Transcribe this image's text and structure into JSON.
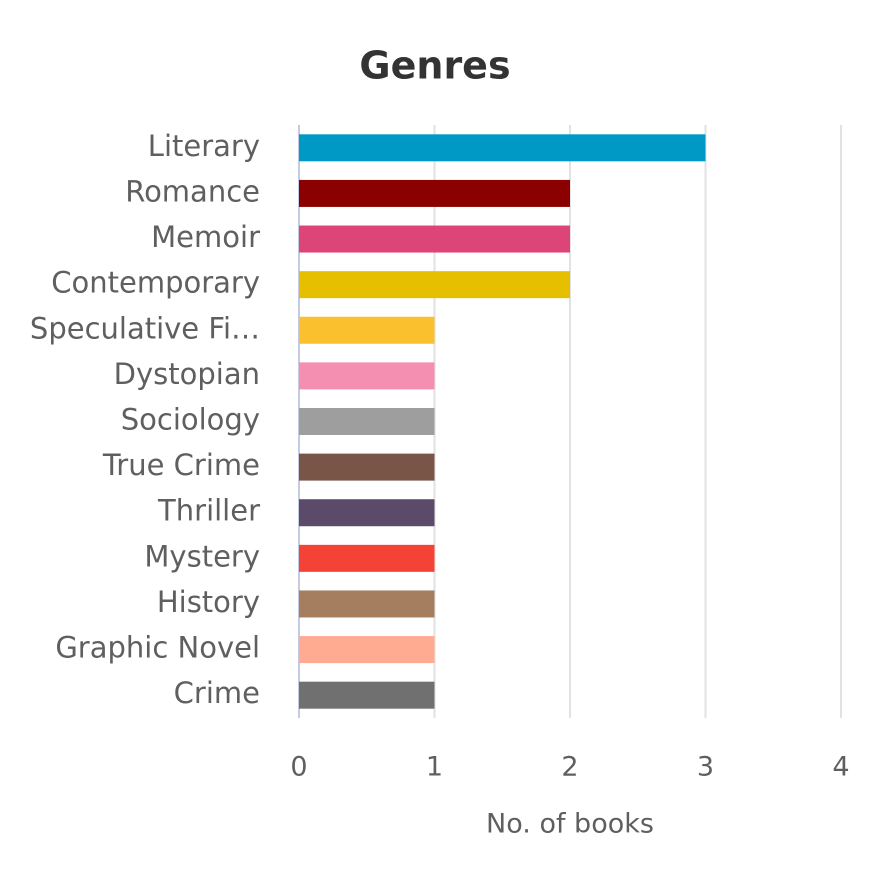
{
  "chart_data": {
    "type": "barh",
    "title": "Genres",
    "x_label": "No. of books",
    "categories": [
      "Literary",
      "Romance",
      "Memoir",
      "Contemporary",
      "Speculative Fi…",
      "Dystopian",
      "Sociology",
      "True Crime",
      "Thriller",
      "Mystery",
      "History",
      "Graphic Novel",
      "Crime"
    ],
    "values": [
      3,
      2,
      2,
      2,
      1,
      1,
      1,
      1,
      1,
      1,
      1,
      1,
      1
    ],
    "colors": [
      "#0099c6",
      "#8b0000",
      "#dd4477",
      "#e6c000",
      "#fbc02d",
      "#f48fb1",
      "#9e9e9e",
      "#795548",
      "#5c4a6b",
      "#f44336",
      "#a47e5f",
      "#ffab91",
      "#707070"
    ],
    "xlim": [
      0,
      4
    ],
    "xticks": [
      0,
      1,
      2,
      3,
      4
    ],
    "grid": true
  }
}
